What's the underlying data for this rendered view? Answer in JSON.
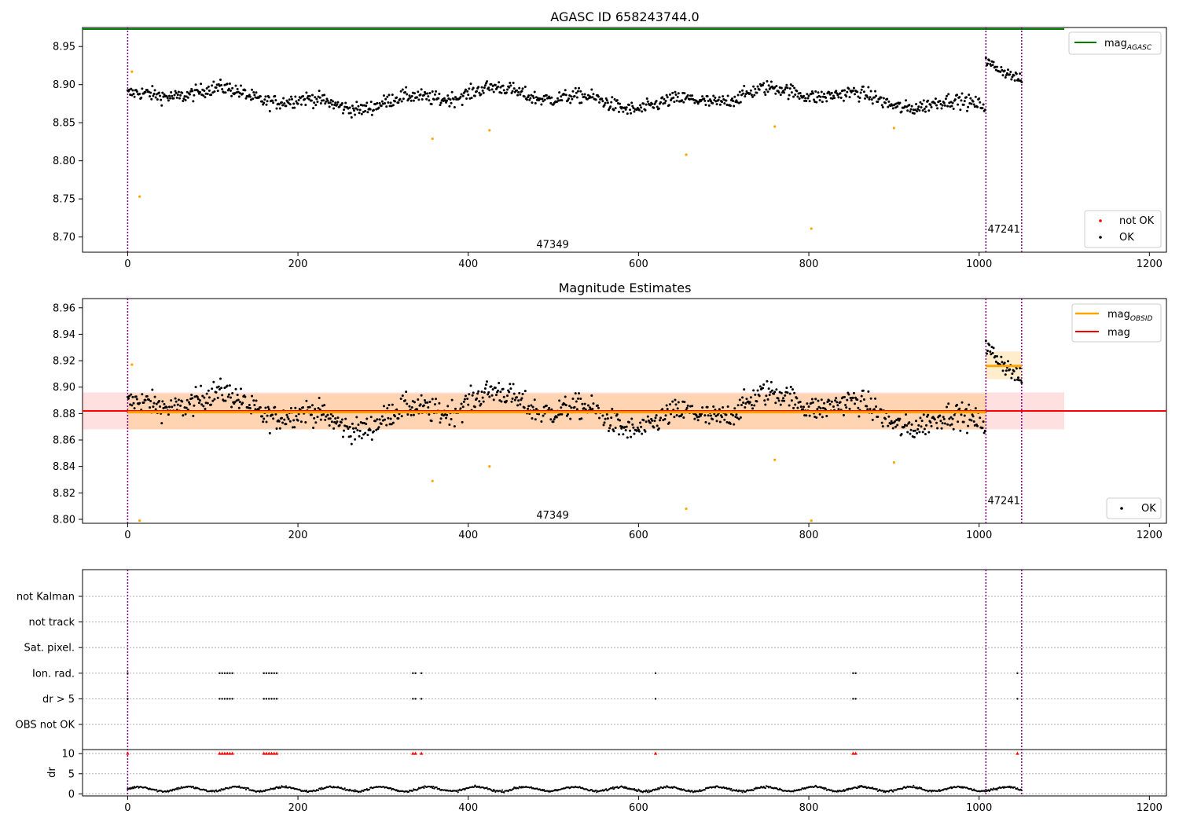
{
  "chart_data": [
    {
      "type": "scatter",
      "title": "AGASC ID 658243744.0",
      "xlim": [
        -53,
        1220
      ],
      "ylim": [
        8.68,
        8.975
      ],
      "x_ticks": [
        0,
        200,
        400,
        600,
        800,
        1000,
        1200
      ],
      "y_ticks": [
        8.7,
        8.75,
        8.8,
        8.85,
        8.9,
        8.95
      ],
      "y_tick_labels": [
        "8.70",
        "8.75",
        "8.80",
        "8.85",
        "8.90",
        "8.95"
      ],
      "obs_boundaries": [
        0,
        1008,
        1050
      ],
      "annotations": [
        {
          "text": "47349",
          "x": 480,
          "y": 8.69
        },
        {
          "text": "47241",
          "x": 1010,
          "y": 8.71
        }
      ],
      "mag_agasc": 8.973,
      "legend_upper": [
        {
          "label": "mag",
          "subscript": "AGASC",
          "color": "#008000"
        }
      ],
      "legend_lower": [
        {
          "label": "not OK",
          "color": "#ff0000"
        },
        {
          "label": "OK",
          "color": "#000000"
        }
      ],
      "segments": [
        {
          "x": [
            0,
            1008
          ],
          "mean": 8.882,
          "amp": 0.009
        },
        {
          "x": [
            1008,
            1050
          ],
          "start": 8.93,
          "end": 8.905
        }
      ],
      "outliers": [
        {
          "x": 5,
          "y": 8.917
        },
        {
          "x": 14,
          "y": 8.753
        },
        {
          "x": 358,
          "y": 8.829
        },
        {
          "x": 425,
          "y": 8.84
        },
        {
          "x": 656,
          "y": 8.808
        },
        {
          "x": 760,
          "y": 8.845
        },
        {
          "x": 803,
          "y": 8.711
        },
        {
          "x": 900,
          "y": 8.843
        }
      ]
    },
    {
      "type": "scatter",
      "title": "Magnitude Estimates",
      "xlim": [
        -53,
        1220
      ],
      "ylim": [
        8.797,
        8.967
      ],
      "x_ticks": [
        0,
        200,
        400,
        600,
        800,
        1000,
        1200
      ],
      "y_ticks": [
        8.8,
        8.82,
        8.84,
        8.86,
        8.88,
        8.9,
        8.92,
        8.94,
        8.96
      ],
      "y_tick_labels": [
        "8.80",
        "8.82",
        "8.84",
        "8.86",
        "8.88",
        "8.90",
        "8.92",
        "8.94",
        "8.96"
      ],
      "obs_boundaries": [
        0,
        1008,
        1050
      ],
      "annotations": [
        {
          "text": "47349",
          "x": 480,
          "y": 8.803
        },
        {
          "text": "47241",
          "x": 1010,
          "y": 8.814
        }
      ],
      "mag": 8.882,
      "mag_band": [
        8.868,
        8.896
      ],
      "mag_band_x": [
        -53,
        1100
      ],
      "mag_obsid": [
        {
          "x": [
            0,
            1008
          ],
          "value": 8.881,
          "band": [
            8.868,
            8.895
          ]
        },
        {
          "x": [
            1008,
            1050
          ],
          "value": 8.916,
          "band": [
            8.906,
            8.927
          ]
        }
      ],
      "legend_upper": [
        {
          "label": "mag",
          "subscript": "OBSID",
          "color": "#ffa500"
        },
        {
          "label": "mag",
          "subscript": "",
          "color": "#ff0000"
        }
      ],
      "legend_lower": [
        {
          "label": "OK",
          "color": "#000000"
        }
      ],
      "outliers": [
        {
          "x": 5,
          "y": 8.917
        },
        {
          "x": 14,
          "y": 8.799
        },
        {
          "x": 358,
          "y": 8.829
        },
        {
          "x": 425,
          "y": 8.84
        },
        {
          "x": 656,
          "y": 8.808
        },
        {
          "x": 760,
          "y": 8.845
        },
        {
          "x": 803,
          "y": 8.799
        },
        {
          "x": 900,
          "y": 8.843
        }
      ]
    },
    {
      "type": "scatter",
      "title": "",
      "xlim": [
        -53,
        1220
      ],
      "x_ticks": [
        0,
        200,
        400,
        600,
        800,
        1000,
        1200
      ],
      "obs_boundaries": [
        0,
        1008,
        1050
      ],
      "flag_rows": [
        "not Kalman",
        "not track",
        "Sat. pixel.",
        "Ion. rad.",
        "dr > 5",
        "OBS not OK"
      ],
      "flag_points": {
        "Ion. rad.": [
          0,
          108,
          111,
          114,
          117,
          120,
          123,
          160,
          163,
          166,
          169,
          172,
          175,
          335,
          338,
          345,
          620,
          852,
          855,
          1045
        ],
        "dr > 5": [
          0,
          108,
          111,
          114,
          117,
          120,
          123,
          160,
          163,
          166,
          169,
          172,
          175,
          335,
          338,
          345,
          620,
          852,
          855,
          1045
        ]
      },
      "dr_ylabel": "dr",
      "dr_ylim": [
        -0.5,
        11
      ],
      "dr_ticks": [
        0,
        5,
        10
      ],
      "dr_capped": [
        0,
        108,
        111,
        114,
        117,
        120,
        123,
        160,
        163,
        166,
        169,
        172,
        175,
        335,
        338,
        345,
        620,
        852,
        855,
        1045
      ],
      "dr_level": 10,
      "dr_typical": 1.2
    }
  ]
}
